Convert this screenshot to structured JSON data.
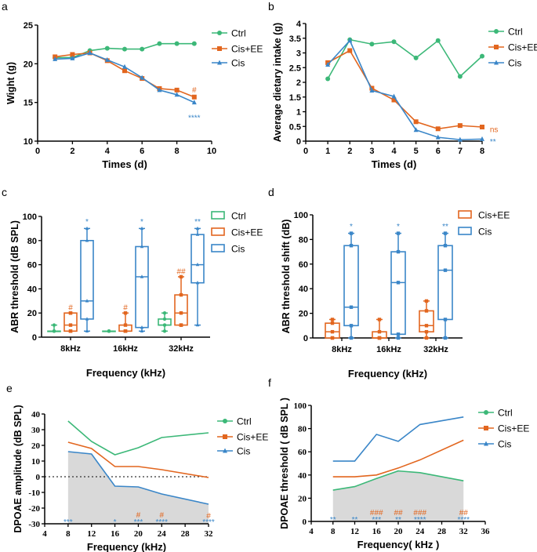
{
  "colors": {
    "Ctrl": "#3cb878",
    "Cis+EE": "#e2661f",
    "Cis": "#3a86c8"
  },
  "chart_data": [
    {
      "panel": "a",
      "type": "line",
      "xlabel": "Times (d)",
      "ylabel": "Wight (g)",
      "xlim": [
        0,
        10
      ],
      "ylim": [
        10,
        25
      ],
      "xticks": [
        0,
        2,
        4,
        6,
        8,
        10
      ],
      "yticks": [
        10,
        15,
        20,
        25
      ],
      "x": [
        1,
        2,
        3,
        4,
        5,
        6,
        7,
        8,
        9
      ],
      "series": [
        {
          "name": "Ctrl",
          "marker": "circle",
          "values": [
            20.8,
            20.8,
            21.7,
            22.0,
            21.9,
            21.9,
            22.6,
            22.6,
            22.6
          ]
        },
        {
          "name": "Cis+EE",
          "marker": "square",
          "values": [
            20.9,
            21.2,
            21.4,
            20.4,
            19.1,
            18.1,
            16.8,
            16.6,
            15.7
          ]
        },
        {
          "name": "Cis",
          "marker": "triangle",
          "values": [
            20.6,
            20.7,
            21.4,
            20.5,
            19.6,
            18.2,
            16.6,
            16.0,
            15.0
          ]
        }
      ],
      "annotations": [
        {
          "text": "#",
          "series": "Cis+EE",
          "x": 9,
          "y": 16.7
        },
        {
          "text": "****",
          "series": "Cis",
          "x": 9,
          "y": 13.1
        }
      ],
      "legend": "right"
    },
    {
      "panel": "b",
      "type": "line",
      "xlabel": "Times (d)",
      "ylabel": "Average dietary intake (g)",
      "xlim": [
        0,
        8
      ],
      "ylim": [
        0,
        4
      ],
      "xticks": [
        0,
        1,
        2,
        3,
        4,
        5,
        6,
        7,
        8
      ],
      "yticks": [
        "0",
        "0.5",
        "1",
        "1.5",
        "2",
        "2.5",
        "3",
        "3.5",
        "4"
      ],
      "x": [
        1,
        2,
        3,
        4,
        5,
        6,
        7,
        8
      ],
      "series": [
        {
          "name": "Ctrl",
          "marker": "circle",
          "values": [
            2.12,
            3.45,
            3.3,
            3.38,
            2.83,
            3.42,
            2.2,
            2.89
          ]
        },
        {
          "name": "Cis+EE",
          "marker": "square",
          "values": [
            2.67,
            3.08,
            1.8,
            1.4,
            0.66,
            0.42,
            0.53,
            0.48
          ]
        },
        {
          "name": "Cis",
          "marker": "triangle",
          "values": [
            2.6,
            3.42,
            1.72,
            1.52,
            0.38,
            0.13,
            0.05,
            0.07
          ]
        }
      ],
      "annotations": [
        {
          "text": "ns",
          "series": "Cis+EE",
          "x": 8.35,
          "y": 0.42
        },
        {
          "text": "**",
          "series": "Cis",
          "x": 8.35,
          "y": 0.0
        }
      ],
      "legend": "right"
    },
    {
      "panel": "c",
      "type": "box",
      "xlabel": "Frequency (kHz)",
      "ylabel": "ABR threshold (dB SPL)",
      "ylim": [
        0,
        100
      ],
      "yticks": [
        0,
        20,
        40,
        60,
        80,
        100
      ],
      "categories": [
        "8kHz",
        "16kHz",
        "32kHz"
      ],
      "series": [
        {
          "name": "Ctrl",
          "boxes": [
            [
              5,
              5,
              5,
              5,
              10
            ],
            [
              5,
              5,
              5,
              5,
              5
            ],
            [
              5,
              10,
              10,
              15,
              20
            ]
          ]
        },
        {
          "name": "Cis+EE",
          "boxes": [
            [
              5,
              5,
              10,
              20,
              20
            ],
            [
              5,
              5,
              5,
              10,
              20
            ],
            [
              10,
              10,
              20,
              35,
              50
            ]
          ]
        },
        {
          "name": "Cis",
          "boxes": [
            [
              5,
              15,
              30,
              80,
              90
            ],
            [
              5,
              8,
              50,
              75,
              90
            ],
            [
              10,
              45,
              60,
              85,
              90
            ]
          ]
        }
      ],
      "annotations": [
        {
          "text": "#",
          "series": "Cis+EE",
          "category": 0,
          "y": 25
        },
        {
          "text": "#",
          "series": "Cis+EE",
          "category": 1,
          "y": 25
        },
        {
          "text": "##",
          "series": "Cis+EE",
          "category": 2,
          "y": 55
        },
        {
          "text": "*",
          "series": "Cis",
          "category": 0,
          "y": 96
        },
        {
          "text": "*",
          "series": "Cis",
          "category": 1,
          "y": 96
        },
        {
          "text": "**",
          "series": "Cis",
          "category": 2,
          "y": 96
        }
      ],
      "legend": "right"
    },
    {
      "panel": "d",
      "type": "box",
      "xlabel": "Frequency (kHz)",
      "ylabel": "ABR threshold shift (dB)",
      "ylim": [
        0,
        100
      ],
      "yticks": [
        0,
        20,
        40,
        60,
        80,
        100
      ],
      "categories": [
        "8kHz",
        "16kHz",
        "32kHz"
      ],
      "series": [
        {
          "name": "Cis+EE",
          "boxes": [
            [
              0,
              0,
              5,
              12,
              15
            ],
            [
              0,
              0,
              0,
              5,
              15
            ],
            [
              0,
              5,
              10,
              22,
              30
            ]
          ]
        },
        {
          "name": "Cis",
          "boxes": [
            [
              0,
              10,
              25,
              75,
              85
            ],
            [
              0,
              3,
              45,
              70,
              85
            ],
            [
              0,
              15,
              55,
              75,
              85
            ]
          ]
        }
      ],
      "annotations": [
        {
          "text": "*",
          "series": "Cis",
          "category": 0,
          "y": 91
        },
        {
          "text": "*",
          "series": "Cis",
          "category": 1,
          "y": 91
        },
        {
          "text": "**",
          "series": "Cis",
          "category": 2,
          "y": 91
        }
      ],
      "legend": "right"
    },
    {
      "panel": "e",
      "type": "line",
      "xlabel": "Frequency (kHz)",
      "ylabel": "DPOAE amplitude (dB SPL)",
      "xlim": [
        4,
        32
      ],
      "ylim": [
        -30,
        40
      ],
      "xticks": [
        4,
        8,
        12,
        16,
        20,
        24,
        28,
        32
      ],
      "yticks": [
        -30,
        -20,
        -10,
        0,
        10,
        20,
        30,
        40
      ],
      "x": [
        8,
        12,
        16,
        20,
        24,
        32
      ],
      "reference_line": 0,
      "shaded_series": "Cis",
      "series": [
        {
          "name": "Ctrl",
          "marker": "circle",
          "values": [
            35.5,
            22.5,
            14,
            18.5,
            25,
            28
          ]
        },
        {
          "name": "Cis+EE",
          "marker": "square",
          "values": [
            22,
            18,
            6.5,
            6.5,
            4.5,
            -0.5
          ]
        },
        {
          "name": "Cis",
          "marker": "triangle",
          "values": [
            16,
            14.5,
            -6,
            -6.5,
            -11,
            -17.5
          ]
        }
      ],
      "annotations": [
        {
          "text": "***",
          "series": "Cis",
          "x": 8,
          "y": -28.5
        },
        {
          "text": "*",
          "series": "Cis",
          "x": 16,
          "y": -28.5
        },
        {
          "text": "***",
          "series": "Cis",
          "x": 20,
          "y": -28.5
        },
        {
          "text": "****",
          "series": "Cis",
          "x": 24,
          "y": -28.5
        },
        {
          "text": "****",
          "series": "Cis",
          "x": 32,
          "y": -28.5
        },
        {
          "text": "#",
          "series": "Cis+EE",
          "x": 20,
          "y": -24
        },
        {
          "text": "#",
          "series": "Cis+EE",
          "x": 24,
          "y": -24
        },
        {
          "text": "#",
          "series": "Cis+EE",
          "x": 32,
          "y": -24.5
        }
      ],
      "legend": "right"
    },
    {
      "panel": "f",
      "type": "line",
      "xlabel": "Frequency( kHz )",
      "ylabel": "DPOAE threshold ( dB SPL )",
      "xlim": [
        4,
        36
      ],
      "ylim": [
        0,
        100
      ],
      "xticks": [
        4,
        8,
        12,
        16,
        20,
        24,
        28,
        32,
        36
      ],
      "yticks": [
        0,
        20,
        40,
        60,
        80,
        100
      ],
      "x": [
        8,
        12,
        16,
        20,
        24,
        32
      ],
      "shaded_series": "Ctrl",
      "series": [
        {
          "name": "Ctrl",
          "marker": "circle",
          "values": [
            27,
            30,
            37,
            43.5,
            42,
            35
          ]
        },
        {
          "name": "Cis+EE",
          "marker": "square",
          "values": [
            38.5,
            38.5,
            40,
            46,
            53,
            70
          ]
        },
        {
          "name": "Cis",
          "marker": "triangle",
          "values": [
            52,
            52,
            75,
            69,
            83.5,
            90
          ]
        }
      ],
      "annotations": [
        {
          "text": "**",
          "series": "Cis",
          "x": 8,
          "y": 2
        },
        {
          "text": "**",
          "series": "Cis",
          "x": 12,
          "y": 2
        },
        {
          "text": "***",
          "series": "Cis",
          "x": 16,
          "y": 2
        },
        {
          "text": "**",
          "series": "Cis",
          "x": 20,
          "y": 2
        },
        {
          "text": "****",
          "series": "Cis",
          "x": 24,
          "y": 2
        },
        {
          "text": "****",
          "series": "Cis",
          "x": 32,
          "y": 2
        },
        {
          "text": "###",
          "series": "Cis+EE",
          "x": 16,
          "y": 8
        },
        {
          "text": "##",
          "series": "Cis+EE",
          "x": 20,
          "y": 8
        },
        {
          "text": "###",
          "series": "Cis+EE",
          "x": 24,
          "y": 8
        },
        {
          "text": "##",
          "series": "Cis+EE",
          "x": 32,
          "y": 8
        }
      ],
      "legend": "right"
    }
  ]
}
